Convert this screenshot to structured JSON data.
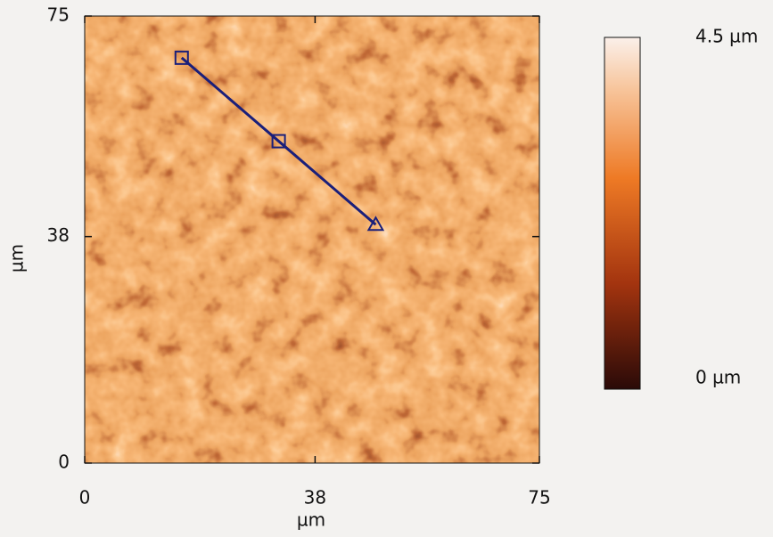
{
  "chart_data": {
    "type": "heatmap",
    "xlabel": "µm",
    "ylabel": "µm",
    "xlim": [
      0,
      75
    ],
    "xticks": [
      0,
      38,
      75
    ],
    "ylim": [
      0,
      75
    ],
    "yticks": [
      0,
      38,
      75
    ],
    "colorbar": {
      "lim": [
        0,
        4.5
      ],
      "ticks": [
        {
          "value": 4.5,
          "label": "4.5 µm"
        },
        {
          "value": 0,
          "label": "0 µm"
        }
      ]
    },
    "profile": {
      "color": "#1a1f7a",
      "x": [
        16,
        32,
        48
      ],
      "y": [
        68,
        54,
        40
      ],
      "markers": [
        "square",
        "square",
        "triangle"
      ]
    }
  }
}
